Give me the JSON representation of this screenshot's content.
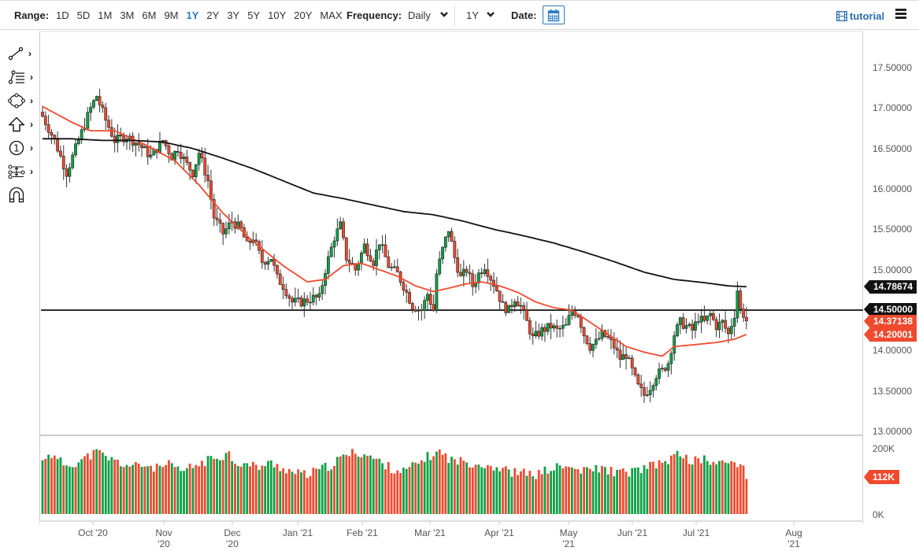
{
  "toolbar": {
    "range_label": "Range:",
    "ranges": [
      "1D",
      "5D",
      "1M",
      "3M",
      "6M",
      "9M",
      "1Y",
      "2Y",
      "3Y",
      "5Y",
      "10Y",
      "20Y",
      "MAX"
    ],
    "active_range": "1Y",
    "frequency_label": "Frequency:",
    "frequency_value": "Daily",
    "period_value": "1Y",
    "date_label": "Date:",
    "tutorial_label": "tutorial"
  },
  "sidebar": {
    "tools": [
      {
        "name": "trendline-tool",
        "icon": "line-icon",
        "has_submenu": true
      },
      {
        "name": "fibonacci-tool",
        "icon": "fib-lines-icon",
        "has_submenu": true
      },
      {
        "name": "shapes-tool",
        "icon": "ellipse-icon",
        "has_submenu": true
      },
      {
        "name": "arrow-tool",
        "icon": "up-arrow-icon",
        "has_submenu": true
      },
      {
        "name": "annotation-tool",
        "icon": "numbered-circle-icon",
        "has_submenu": true
      },
      {
        "name": "measure-tool",
        "icon": "measure-icon",
        "has_submenu": true
      },
      {
        "name": "magnet-tool",
        "icon": "magnet-icon",
        "has_submenu": false
      }
    ]
  },
  "colors": {
    "up": "#0fa046",
    "down": "#ef4a2e",
    "ma_fast": "#ef4a2e",
    "ma_slow": "#111111",
    "accent": "#2a7ac0"
  },
  "chart_data": {
    "type": "candlestick",
    "title": "",
    "frequency": "Daily",
    "range": "1Y",
    "price_axis": {
      "ticks": [
        "17.50000",
        "17.00000",
        "16.50000",
        "16.00000",
        "15.50000",
        "15.00000",
        "14.00000",
        "13.50000",
        "13.00000"
      ],
      "ylim": [
        13.0,
        17.5
      ]
    },
    "volume_axis": {
      "ticks": [
        "200K",
        "0K"
      ],
      "ylim": [
        0,
        200000
      ]
    },
    "x_axis": {
      "ticks": [
        "Oct '20",
        "Nov '20",
        "Dec '20",
        "Jan '21",
        "Feb '21",
        "Mar '21",
        "Apr '21",
        "May '21",
        "Jun '21",
        "Jul '21",
        "Aug '21"
      ]
    },
    "price_tags": [
      {
        "label": "14.78674",
        "kind": "200-day MA",
        "color": "black"
      },
      {
        "label": "14.50000",
        "kind": "horizontal line",
        "color": "black"
      },
      {
        "label": "14.37138",
        "kind": "last price",
        "color": "red"
      },
      {
        "label": "14.20001",
        "kind": "50-day MA",
        "color": "red"
      }
    ],
    "volume_tag": "112K",
    "horizontal_line": 14.5,
    "close_path": [
      [
        0,
        16.9
      ],
      [
        4,
        16.6
      ],
      [
        8,
        16.2
      ],
      [
        12,
        16.6
      ],
      [
        16,
        17.0
      ],
      [
        18,
        17.15
      ],
      [
        21,
        16.85
      ],
      [
        24,
        16.6
      ],
      [
        28,
        16.65
      ],
      [
        32,
        16.55
      ],
      [
        36,
        16.4
      ],
      [
        40,
        16.6
      ],
      [
        43,
        16.4
      ],
      [
        45,
        16.5
      ],
      [
        48,
        16.3
      ],
      [
        50,
        16.2
      ],
      [
        52,
        16.45
      ],
      [
        55,
        16.1
      ],
      [
        57,
        15.65
      ],
      [
        60,
        15.45
      ],
      [
        63,
        15.6
      ],
      [
        66,
        15.5
      ],
      [
        68,
        15.3
      ],
      [
        70,
        15.4
      ],
      [
        73,
        15.1
      ],
      [
        76,
        15.15
      ],
      [
        78,
        14.9
      ],
      [
        80,
        14.8
      ],
      [
        83,
        14.6
      ],
      [
        86,
        14.6
      ],
      [
        90,
        14.65
      ],
      [
        92,
        14.65
      ],
      [
        94,
        15.0
      ],
      [
        97,
        15.4
      ],
      [
        99,
        15.55
      ],
      [
        101,
        15.15
      ],
      [
        104,
        15.0
      ],
      [
        107,
        15.3
      ],
      [
        110,
        15.1
      ],
      [
        112,
        15.35
      ],
      [
        115,
        15.05
      ],
      [
        118,
        14.95
      ],
      [
        120,
        14.8
      ],
      [
        123,
        14.55
      ],
      [
        126,
        14.5
      ],
      [
        128,
        14.7
      ],
      [
        130,
        14.5
      ],
      [
        131,
        14.95
      ],
      [
        133,
        15.25
      ],
      [
        135,
        15.5
      ],
      [
        137,
        15.15
      ],
      [
        139,
        14.9
      ],
      [
        141,
        15.0
      ],
      [
        143,
        14.8
      ],
      [
        145,
        14.95
      ],
      [
        147,
        15.05
      ],
      [
        149,
        14.9
      ],
      [
        151,
        14.75
      ],
      [
        153,
        14.55
      ],
      [
        155,
        14.5
      ],
      [
        157,
        14.65
      ],
      [
        159,
        14.55
      ],
      [
        161,
        14.35
      ],
      [
        163,
        14.15
      ],
      [
        166,
        14.25
      ],
      [
        169,
        14.3
      ],
      [
        171,
        14.25
      ],
      [
        174,
        14.3
      ],
      [
        176,
        14.5
      ],
      [
        178,
        14.45
      ],
      [
        180,
        14.2
      ],
      [
        182,
        14.05
      ],
      [
        184,
        14.1
      ],
      [
        186,
        14.2
      ],
      [
        188,
        14.15
      ],
      [
        190,
        14.05
      ],
      [
        192,
        13.9
      ],
      [
        194,
        13.95
      ],
      [
        196,
        13.75
      ],
      [
        198,
        13.55
      ],
      [
        200,
        13.45
      ],
      [
        202,
        13.55
      ],
      [
        204,
        13.7
      ],
      [
        206,
        13.75
      ],
      [
        208,
        13.85
      ],
      [
        210,
        14.2
      ],
      [
        212,
        14.35
      ],
      [
        214,
        14.3
      ],
      [
        216,
        14.25
      ],
      [
        218,
        14.4
      ],
      [
        220,
        14.35
      ],
      [
        222,
        14.45
      ],
      [
        224,
        14.3
      ],
      [
        226,
        14.35
      ],
      [
        228,
        14.2
      ],
      [
        230,
        14.45
      ],
      [
        231,
        14.75
      ],
      [
        232,
        14.5
      ],
      [
        233,
        14.45
      ],
      [
        234,
        14.37
      ]
    ],
    "ma_fast_path": [
      [
        0,
        17.02
      ],
      [
        10,
        16.82
      ],
      [
        16,
        16.72
      ],
      [
        24,
        16.72
      ],
      [
        34,
        16.55
      ],
      [
        44,
        16.35
      ],
      [
        52,
        16.05
      ],
      [
        60,
        15.7
      ],
      [
        70,
        15.35
      ],
      [
        80,
        15.05
      ],
      [
        88,
        14.85
      ],
      [
        94,
        14.88
      ],
      [
        100,
        15.05
      ],
      [
        106,
        15.08
      ],
      [
        112,
        15.0
      ],
      [
        118,
        14.92
      ],
      [
        124,
        14.8
      ],
      [
        130,
        14.73
      ],
      [
        136,
        14.78
      ],
      [
        140,
        14.82
      ],
      [
        146,
        14.85
      ],
      [
        152,
        14.8
      ],
      [
        158,
        14.72
      ],
      [
        164,
        14.6
      ],
      [
        170,
        14.53
      ],
      [
        176,
        14.5
      ],
      [
        182,
        14.35
      ],
      [
        188,
        14.2
      ],
      [
        194,
        14.05
      ],
      [
        200,
        13.98
      ],
      [
        206,
        13.93
      ],
      [
        210,
        14.05
      ],
      [
        216,
        14.07
      ],
      [
        224,
        14.1
      ],
      [
        230,
        14.14
      ],
      [
        234,
        14.2
      ]
    ],
    "ma_slow_path": [
      [
        0,
        16.62
      ],
      [
        10,
        16.62
      ],
      [
        20,
        16.6
      ],
      [
        30,
        16.6
      ],
      [
        40,
        16.58
      ],
      [
        50,
        16.5
      ],
      [
        60,
        16.38
      ],
      [
        70,
        16.25
      ],
      [
        80,
        16.1
      ],
      [
        90,
        15.95
      ],
      [
        100,
        15.88
      ],
      [
        110,
        15.8
      ],
      [
        120,
        15.72
      ],
      [
        130,
        15.68
      ],
      [
        140,
        15.6
      ],
      [
        150,
        15.5
      ],
      [
        160,
        15.42
      ],
      [
        170,
        15.33
      ],
      [
        180,
        15.22
      ],
      [
        190,
        15.1
      ],
      [
        200,
        14.97
      ],
      [
        210,
        14.88
      ],
      [
        220,
        14.84
      ],
      [
        228,
        14.8
      ],
      [
        234,
        14.79
      ]
    ],
    "volume_profile": [
      [
        0,
        160
      ],
      [
        2,
        190
      ],
      [
        4,
        170
      ],
      [
        8,
        150
      ],
      [
        12,
        160
      ],
      [
        16,
        180
      ],
      [
        18,
        190
      ],
      [
        22,
        170
      ],
      [
        26,
        155
      ],
      [
        30,
        145
      ],
      [
        34,
        150
      ],
      [
        38,
        140
      ],
      [
        42,
        150
      ],
      [
        46,
        130
      ],
      [
        50,
        145
      ],
      [
        54,
        160
      ],
      [
        58,
        175
      ],
      [
        62,
        185
      ],
      [
        64,
        160
      ],
      [
        68,
        150
      ],
      [
        72,
        145
      ],
      [
        76,
        155
      ],
      [
        80,
        140
      ],
      [
        84,
        125
      ],
      [
        88,
        120
      ],
      [
        92,
        135
      ],
      [
        96,
        150
      ],
      [
        100,
        175
      ],
      [
        104,
        190
      ],
      [
        108,
        180
      ],
      [
        112,
        160
      ],
      [
        116,
        140
      ],
      [
        120,
        130
      ],
      [
        124,
        150
      ],
      [
        128,
        175
      ],
      [
        132,
        190
      ],
      [
        136,
        165
      ],
      [
        140,
        160
      ],
      [
        144,
        155
      ],
      [
        148,
        150
      ],
      [
        152,
        140
      ],
      [
        156,
        128
      ],
      [
        160,
        125
      ],
      [
        164,
        120
      ],
      [
        168,
        135
      ],
      [
        172,
        145
      ],
      [
        176,
        140
      ],
      [
        180,
        130
      ],
      [
        184,
        140
      ],
      [
        188,
        135
      ],
      [
        192,
        125
      ],
      [
        196,
        130
      ],
      [
        200,
        140
      ],
      [
        204,
        150
      ],
      [
        208,
        165
      ],
      [
        212,
        185
      ],
      [
        216,
        160
      ],
      [
        220,
        170
      ],
      [
        224,
        150
      ],
      [
        228,
        160
      ],
      [
        232,
        155
      ],
      [
        234,
        112
      ]
    ]
  }
}
